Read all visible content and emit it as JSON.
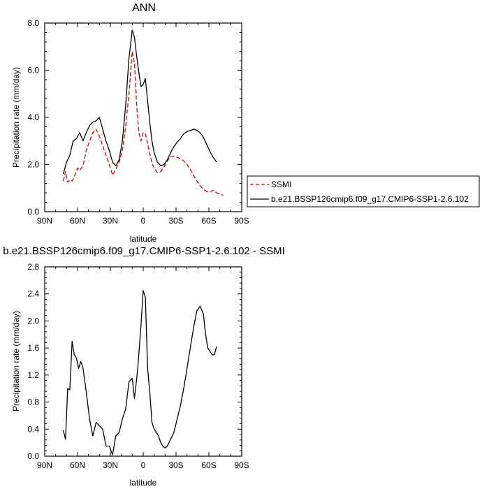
{
  "chart_data": [
    {
      "type": "line",
      "title": "ANN",
      "xlabel": "latitude",
      "ylabel": "Precipitation rate (mm/day)",
      "xlim": [
        90,
        -90
      ],
      "ylim": [
        0,
        8
      ],
      "x_ticks": [
        90,
        60,
        30,
        0,
        -30,
        -60,
        -90
      ],
      "x_tick_labels": [
        "90N",
        "60N",
        "30N",
        "0",
        "30S",
        "60S",
        "90S"
      ],
      "y_ticks": [
        0,
        2,
        4,
        6,
        8
      ],
      "y_tick_labels": [
        "0.0",
        "2.0",
        "4.0",
        "6.0",
        "8.0"
      ],
      "legend_position": "right",
      "series": [
        {
          "name": "SSMI",
          "color": "#e00000",
          "dash": "dashed",
          "x": [
            73,
            71,
            69,
            67,
            65,
            62,
            60,
            58,
            55,
            52,
            49,
            46,
            43,
            40,
            37,
            34,
            31,
            28,
            25,
            22,
            19,
            16,
            13,
            10,
            8,
            6,
            4,
            2,
            0,
            -2,
            -4,
            -6,
            -8,
            -10,
            -13,
            -16,
            -19,
            -22,
            -25,
            -28,
            -31,
            -34,
            -37,
            -40,
            -43,
            -46,
            -49,
            -52,
            -55,
            -58,
            -61,
            -64,
            -67,
            -70,
            -73
          ],
          "y": [
            1.3,
            1.7,
            1.25,
            1.35,
            1.3,
            1.6,
            1.85,
            1.75,
            1.95,
            2.6,
            3.0,
            3.35,
            3.5,
            3.2,
            2.8,
            2.4,
            2.0,
            1.55,
            1.8,
            2.1,
            2.6,
            3.6,
            5.0,
            6.8,
            6.3,
            4.5,
            3.35,
            3.0,
            3.35,
            3.3,
            2.9,
            2.45,
            2.05,
            1.85,
            1.65,
            1.7,
            1.9,
            2.15,
            2.35,
            2.35,
            2.3,
            2.25,
            2.15,
            2.0,
            1.8,
            1.55,
            1.3,
            1.1,
            0.95,
            0.85,
            0.85,
            0.9,
            0.8,
            0.75,
            0.7
          ]
        },
        {
          "name": "b.e21.BSSP126cmip6.f09_g17.CMIP6-SSP1-2.6.102",
          "color": "#000000",
          "dash": "solid",
          "x": [
            73,
            70,
            67,
            64,
            61,
            58,
            55,
            52,
            49,
            46,
            43,
            40,
            37,
            34,
            31,
            28,
            25,
            22,
            19,
            16,
            13,
            10,
            8,
            6,
            4,
            2,
            0,
            -2,
            -4,
            -6,
            -8,
            -10,
            -13,
            -16,
            -19,
            -22,
            -25,
            -28,
            -31,
            -34,
            -37,
            -40,
            -43,
            -46,
            -49,
            -52,
            -55,
            -58,
            -61,
            -64,
            -67
          ],
          "y": [
            1.6,
            2.1,
            2.4,
            3.0,
            3.1,
            3.35,
            3.0,
            3.35,
            3.65,
            3.8,
            3.85,
            4.0,
            3.5,
            3.0,
            2.6,
            2.1,
            1.95,
            2.2,
            3.0,
            4.5,
            6.5,
            7.7,
            7.4,
            6.6,
            5.9,
            5.3,
            5.4,
            5.65,
            4.7,
            3.8,
            3.0,
            2.5,
            2.1,
            1.95,
            2.0,
            2.2,
            2.5,
            2.75,
            2.95,
            3.1,
            3.3,
            3.4,
            3.45,
            3.5,
            3.45,
            3.35,
            3.15,
            2.85,
            2.55,
            2.3,
            2.1
          ]
        }
      ]
    },
    {
      "type": "line",
      "title": "b.e21.BSSP126cmip6.f09_g17.CMIP6-SSP1-2.6.102 - SSMI",
      "xlabel": "latitude",
      "ylabel": "Precipitation rate (mm/day)",
      "xlim": [
        90,
        -90
      ],
      "ylim": [
        0,
        2.8
      ],
      "x_ticks": [
        90,
        60,
        30,
        0,
        -30,
        -60,
        -90
      ],
      "x_tick_labels": [
        "90N",
        "60N",
        "30N",
        "0",
        "30S",
        "60S",
        "90S"
      ],
      "y_ticks": [
        0,
        0.4,
        0.8,
        1.2,
        1.6,
        2.0,
        2.4,
        2.8
      ],
      "y_tick_labels": [
        "0.0",
        "0.4",
        "0.8",
        "1.2",
        "1.6",
        "2.0",
        "2.4",
        "2.8"
      ],
      "series": [
        {
          "color": "#000000",
          "dash": "solid",
          "x": [
            73,
            71,
            69,
            67,
            65,
            63,
            61,
            59,
            57,
            55,
            52,
            49,
            46,
            43,
            40,
            37,
            34,
            31,
            28,
            25,
            22,
            19,
            16,
            13,
            10,
            8,
            5,
            2,
            0,
            -2,
            -4,
            -6,
            -8,
            -10,
            -12,
            -14,
            -16,
            -18,
            -20,
            -22,
            -25,
            -28,
            -31,
            -34,
            -37,
            -40,
            -43,
            -46,
            -49,
            -52,
            -55,
            -57,
            -59,
            -61,
            -63,
            -65,
            -67
          ],
          "y": [
            0.38,
            0.25,
            1.0,
            0.98,
            1.7,
            1.5,
            1.45,
            1.3,
            1.4,
            1.3,
            0.95,
            0.55,
            0.3,
            0.5,
            0.45,
            0.4,
            0.15,
            0.15,
            0.02,
            0.3,
            0.35,
            0.55,
            0.7,
            1.1,
            1.15,
            0.85,
            1.3,
            1.95,
            2.45,
            2.35,
            1.3,
            0.95,
            0.5,
            0.4,
            0.35,
            0.3,
            0.2,
            0.15,
            0.12,
            0.15,
            0.25,
            0.35,
            0.55,
            0.75,
            1.0,
            1.3,
            1.6,
            1.9,
            2.15,
            2.22,
            2.1,
            1.8,
            1.6,
            1.55,
            1.5,
            1.5,
            1.62
          ]
        }
      ]
    }
  ],
  "legend": {
    "items": [
      {
        "label": "SSMI"
      },
      {
        "label": "b.e21.BSSP126cmip6.f09_g17.CMIP6-SSP1-2.6.102"
      }
    ]
  }
}
